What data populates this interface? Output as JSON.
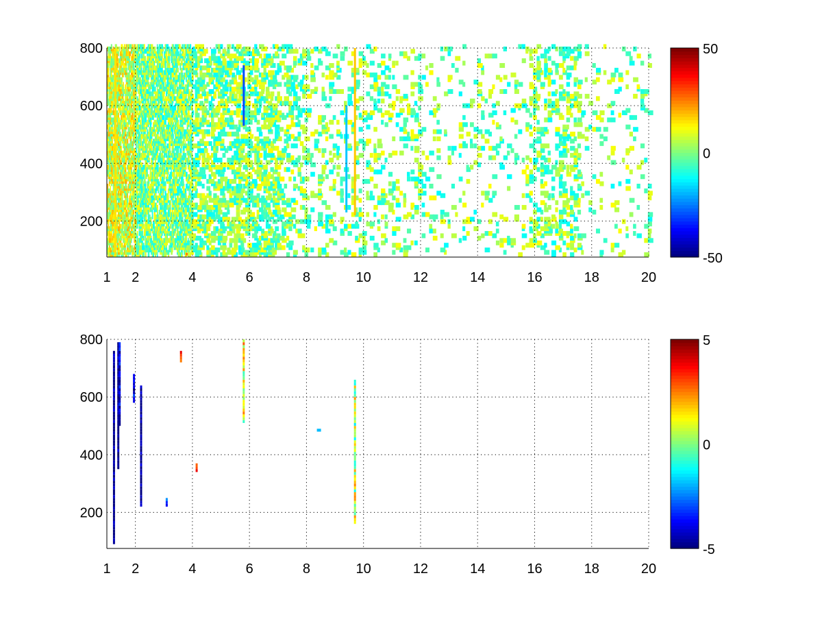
{
  "chart_data": [
    {
      "type": "heatmap",
      "title": "",
      "xlabel": "",
      "ylabel": "",
      "xlim": [
        1,
        20
      ],
      "ylim": [
        75,
        800
      ],
      "x_scale": "linear",
      "xticks": [
        1,
        2,
        4,
        6,
        8,
        10,
        12,
        14,
        16,
        18,
        20
      ],
      "xtick_labels": [
        "1",
        "2",
        "4",
        "6",
        "8",
        "10",
        "12",
        "14",
        "16",
        "18",
        "20"
      ],
      "yticks": [
        200,
        400,
        600,
        800
      ],
      "ytick_labels": [
        "200",
        "400",
        "600",
        "800"
      ],
      "grid": "dotted",
      "colormap": "jet",
      "colorbar": {
        "range": [
          -50,
          50
        ],
        "ticks": [
          50,
          0,
          -50
        ],
        "tick_labels": [
          "50",
          "0",
          "-50"
        ],
        "placement": "right"
      },
      "pattern": "dense sparse scatter, densest for x<7, clusters around x=9.7 and x=16–18",
      "highlights": [
        {
          "x": 1.3,
          "y_range": [
            80,
            800
          ],
          "value": 15
        },
        {
          "x": 5.8,
          "y_range": [
            530,
            740
          ],
          "value": -30
        },
        {
          "x": 9.7,
          "y_range": [
            220,
            800
          ],
          "value": 18
        },
        {
          "x": 9.4,
          "y_range": [
            230,
            600
          ],
          "value": -18
        },
        {
          "x": 3.8,
          "y_range": [
            80,
            90
          ],
          "value": 25
        }
      ]
    },
    {
      "type": "heatmap",
      "title": "",
      "xlabel": "",
      "ylabel": "",
      "xlim": [
        1,
        20
      ],
      "ylim": [
        75,
        800
      ],
      "x_scale": "linear",
      "xticks": [
        1,
        2,
        4,
        6,
        8,
        10,
        12,
        14,
        16,
        18,
        20
      ],
      "xtick_labels": [
        "1",
        "2",
        "4",
        "6",
        "8",
        "10",
        "12",
        "14",
        "16",
        "18",
        "20"
      ],
      "yticks": [
        200,
        400,
        600,
        800
      ],
      "ytick_labels": [
        "200",
        "400",
        "600",
        "800"
      ],
      "grid": "dotted",
      "colormap": "jet",
      "colorbar": {
        "range": [
          -5,
          5
        ],
        "ticks": [
          5,
          0,
          -5
        ],
        "tick_labels": [
          "5",
          "0",
          "-5"
        ],
        "placement": "right"
      },
      "features": [
        {
          "x": 1.25,
          "y_range": [
            90,
            760
          ],
          "value": -5
        },
        {
          "x": 1.4,
          "y_range": [
            350,
            790
          ],
          "value": -5
        },
        {
          "x": 1.45,
          "y_range": [
            500,
            790
          ],
          "value": -4
        },
        {
          "x": 1.95,
          "y_range": [
            580,
            680
          ],
          "value": -4
        },
        {
          "x": 2.2,
          "y_range": [
            220,
            640
          ],
          "value": -5
        },
        {
          "x": 3.1,
          "y_range": [
            220,
            250
          ],
          "value": -3
        },
        {
          "x": 3.6,
          "y_range": [
            720,
            760
          ],
          "value": 3
        },
        {
          "x": 4.15,
          "y_range": [
            340,
            370
          ],
          "value": 3
        },
        {
          "x": 5.8,
          "y_range": [
            510,
            800
          ],
          "value": 1
        },
        {
          "x": 8.4,
          "y_range": [
            480,
            490
          ],
          "value": -2
        },
        {
          "x": 9.7,
          "y_range": [
            160,
            660
          ],
          "value": 0.5
        }
      ]
    }
  ]
}
